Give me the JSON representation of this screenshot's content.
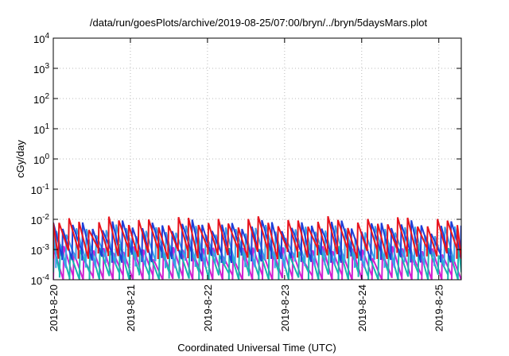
{
  "chart_data": {
    "type": "line",
    "title": "/data/run/goesPlots/archive/2019-08-25/07:00/bryn/../bryn/5daysMars.plot",
    "xlabel": "Coordinated Universal Time (UTC)",
    "ylabel": "cGy/day",
    "y_scale": "log",
    "ylim": [
      0.0001,
      10000
    ],
    "y_ticks": [
      {
        "base": "10",
        "exp": "4"
      },
      {
        "base": "10",
        "exp": "3"
      },
      {
        "base": "10",
        "exp": "2"
      },
      {
        "base": "10",
        "exp": "1"
      },
      {
        "base": "10",
        "exp": "0"
      },
      {
        "base": "10",
        "exp": "-1"
      },
      {
        "base": "10",
        "exp": "-2"
      },
      {
        "base": "10",
        "exp": "-3"
      },
      {
        "base": "10",
        "exp": "-4"
      }
    ],
    "x_ticks": [
      "2019-8-20",
      "2019-8-21",
      "2019-8-22",
      "2019-8-23",
      "2019-8-24",
      "2019-8-25"
    ],
    "xlim": [
      "2019-08-20T00:00",
      "2019-08-25T07:00"
    ],
    "grid": true,
    "colors": [
      "#e8141e",
      "#1f3fd8",
      "#3aa0e8",
      "#17b5b0",
      "#d020d0"
    ],
    "cycle_hours": 3.1,
    "series": [
      {
        "color": "#e8141e",
        "peak": 0.0085,
        "trough": 0.0008
      },
      {
        "color": "#1f3fd8",
        "peak": 0.0065,
        "trough": 0.0006
      },
      {
        "color": "#3aa0e8",
        "peak": 0.0045,
        "trough": 0.0004
      },
      {
        "color": "#17b5b0",
        "peak": 0.0012,
        "trough": 0.00013
      },
      {
        "color": "#d020d0",
        "peak": 0.0009,
        "trough": 0.0001
      }
    ]
  }
}
